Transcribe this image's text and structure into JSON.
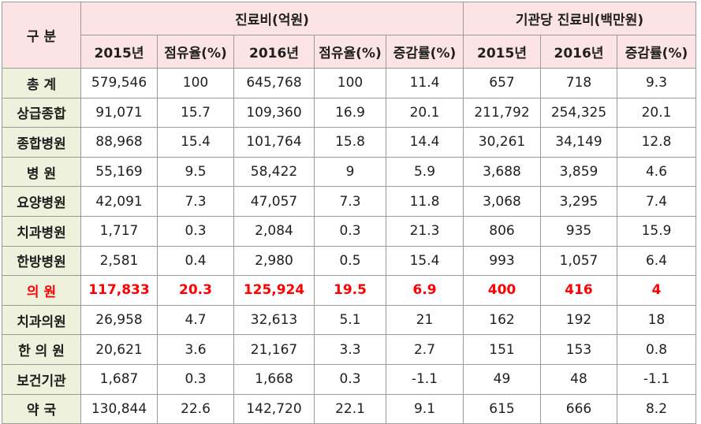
{
  "colors": {
    "header_bg": "#fde4e4",
    "label_bg": "#eef2dd",
    "highlight_text": "#ff0000",
    "grid": "#9a9a9a"
  },
  "header": {
    "category": "구 분",
    "group_cost": "진료비(억원)",
    "group_per_institution": "기관당 진료비(백만원)",
    "cols": [
      "2015년",
      "점유율(%)",
      "2016년",
      "점유율(%)",
      "증감률(%)",
      "2015년",
      "2016년",
      "증감률(%)"
    ]
  },
  "rows": [
    {
      "label": "총 계",
      "values": [
        "579,546",
        "100",
        "645,768",
        "100",
        "11.4",
        "657",
        "718",
        "9.3"
      ]
    },
    {
      "label": "상급종합",
      "values": [
        "91,071",
        "15.7",
        "109,360",
        "16.9",
        "20.1",
        "211,792",
        "254,325",
        "20.1"
      ]
    },
    {
      "label": "종합병원",
      "values": [
        "88,968",
        "15.4",
        "101,764",
        "15.8",
        "14.4",
        "30,261",
        "34,149",
        "12.8"
      ]
    },
    {
      "label": "병 원",
      "values": [
        "55,169",
        "9.5",
        "58,422",
        "9",
        "5.9",
        "3,688",
        "3,859",
        "4.6"
      ]
    },
    {
      "label": "요양병원",
      "values": [
        "42,091",
        "7.3",
        "47,057",
        "7.3",
        "11.8",
        "3,068",
        "3,295",
        "7.4"
      ]
    },
    {
      "label": "치과병원",
      "values": [
        "1,717",
        "0.3",
        "2,084",
        "0.3",
        "21.3",
        "806",
        "935",
        "15.9"
      ]
    },
    {
      "label": "한방병원",
      "values": [
        "2,581",
        "0.4",
        "2,980",
        "0.5",
        "15.4",
        "993",
        "1,057",
        "6.4"
      ]
    },
    {
      "label": "의 원",
      "highlight": true,
      "values": [
        "117,833",
        "20.3",
        "125,924",
        "19.5",
        "6.9",
        "400",
        "416",
        "4"
      ]
    },
    {
      "label": "치과의원",
      "values": [
        "26,958",
        "4.7",
        "32,613",
        "5.1",
        "21",
        "162",
        "192",
        "18"
      ]
    },
    {
      "label": "한 의 원",
      "values": [
        "20,621",
        "3.6",
        "21,167",
        "3.3",
        "2.7",
        "151",
        "153",
        "0.8"
      ]
    },
    {
      "label": "보건기관",
      "values": [
        "1,687",
        "0.3",
        "1,668",
        "0.3",
        "-1.1",
        "49",
        "48",
        "-1.1"
      ]
    },
    {
      "label": "약 국",
      "values": [
        "130,844",
        "22.6",
        "142,720",
        "22.1",
        "9.1",
        "615",
        "666",
        "8.2"
      ]
    }
  ]
}
